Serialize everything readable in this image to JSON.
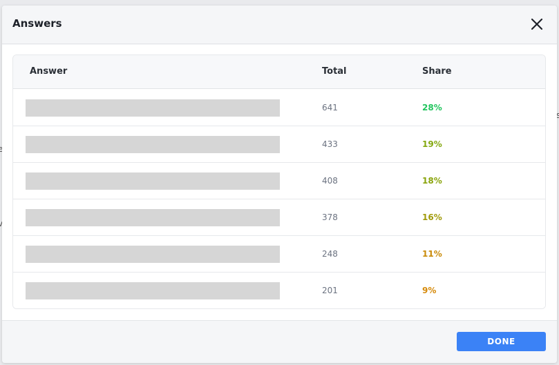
{
  "dialog": {
    "title": "Answers",
    "close_icon": "close-icon",
    "done_label": "DONE",
    "accent_color": "#3b82f6"
  },
  "table": {
    "headers": {
      "answer": "Answer",
      "total": "Total",
      "share": "Share"
    },
    "rows": [
      {
        "answer": "",
        "answer_redacted": true,
        "total": "641",
        "share": "28%",
        "share_color": "#22c55e"
      },
      {
        "answer": "",
        "answer_redacted": true,
        "total": "433",
        "share": "19%",
        "share_color": "#84a80f"
      },
      {
        "answer": "",
        "answer_redacted": true,
        "total": "408",
        "share": "18%",
        "share_color": "#8aa40c"
      },
      {
        "answer": "",
        "answer_redacted": true,
        "total": "378",
        "share": "16%",
        "share_color": "#a09a0a"
      },
      {
        "answer": "",
        "answer_redacted": true,
        "total": "248",
        "share": "11%",
        "share_color": "#c98a08"
      },
      {
        "answer": "",
        "answer_redacted": true,
        "total": "201",
        "share": "9%",
        "share_color": "#d68a0a"
      }
    ]
  }
}
